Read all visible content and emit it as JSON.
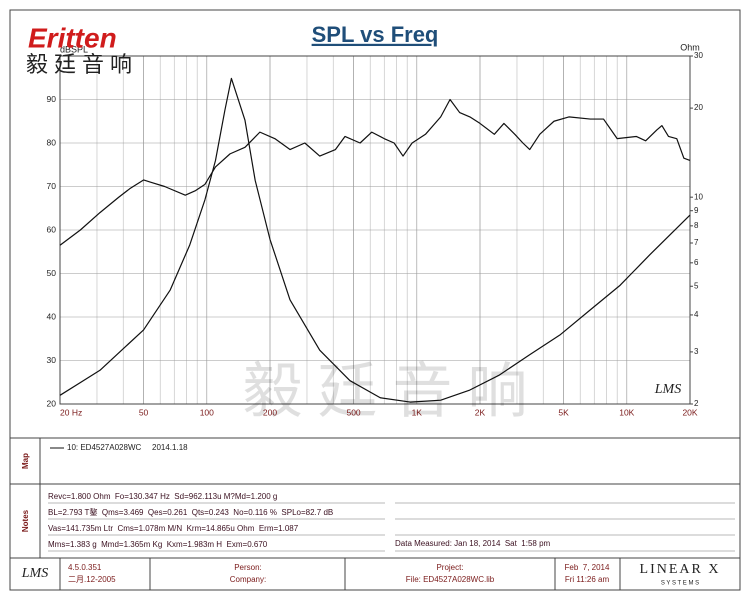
{
  "logo": {
    "brand": "Eritten",
    "chinese": "毅廷音响"
  },
  "watermark": "毅 廷 音 响",
  "corner_logo": "LMS",
  "chart_data": {
    "type": "line",
    "title": "SPL vs Freq",
    "y_label": "dBSPL",
    "y2_label": "Ohm",
    "xlog": true,
    "xlim": [
      20,
      20000
    ],
    "xticks": [
      {
        "value": 20,
        "label": "20 Hz"
      },
      50,
      100,
      200,
      500,
      {
        "value": 1000,
        "label": "1K"
      },
      {
        "value": 2000,
        "label": "2K"
      },
      {
        "value": 5000,
        "label": "5K"
      },
      {
        "value": 10000,
        "label": "10K"
      },
      {
        "value": 20000,
        "label": "20K"
      }
    ],
    "ylim": [
      20,
      100
    ],
    "yticks": [
      20,
      30,
      40,
      50,
      60,
      70,
      80,
      90
    ],
    "y2log": true,
    "y2lim": [
      2,
      30
    ],
    "y2ticks": [
      2,
      3,
      4,
      5,
      6,
      7,
      8,
      9,
      10,
      20,
      30
    ],
    "grid": true,
    "series": [
      {
        "color": "#111111",
        "x": [
          20,
          25,
          31,
          38,
          43,
          50,
          54,
          63,
          79,
          88,
          98,
          110,
          129,
          152,
          179,
          211,
          249,
          293,
          345,
          410,
          455,
          537,
          610,
          700,
          780,
          860,
          950,
          1100,
          1300,
          1440,
          1600,
          1790,
          2000,
          2340,
          2600,
          2930,
          3200,
          3450,
          3850,
          4500,
          5300,
          6700,
          7750,
          9000,
          11100,
          12300,
          13900,
          14700,
          15800,
          17300,
          18700,
          20000
        ],
        "values": [
          56.5,
          60,
          64,
          67.5,
          69.5,
          71.5,
          71,
          70,
          68,
          69,
          70.5,
          74.5,
          77.5,
          79,
          82.5,
          81,
          78.5,
          80,
          77,
          78.5,
          81.5,
          80,
          82.5,
          81,
          80,
          77,
          80,
          82,
          86,
          90,
          87,
          86,
          84.5,
          82,
          84.5,
          82,
          80,
          78.5,
          82,
          85,
          86,
          85.5,
          85.5,
          81,
          81.5,
          80.5,
          83,
          84,
          81.5,
          81,
          76.5,
          76
        ]
      },
      {
        "color": "#111111",
        "axis": "y2",
        "x": [
          20,
          31,
          50,
          67,
          83,
          98,
          110,
          122,
          131,
          152,
          170,
          200,
          249,
          345,
          480,
          670,
          930,
          1300,
          1790,
          2460,
          3440,
          4800,
          6700,
          9300,
          12900,
          20000
        ],
        "values": [
          2.14,
          2.6,
          3.56,
          4.86,
          6.9,
          9.8,
          13.3,
          19.7,
          25.2,
          18.2,
          11.4,
          7.2,
          4.5,
          3.04,
          2.4,
          2.1,
          2.03,
          2.06,
          2.23,
          2.5,
          2.93,
          3.42,
          4.16,
          5.04,
          6.4,
          8.7
        ]
      }
    ]
  },
  "map": {
    "label": "Map",
    "entry": "10: ED4527A028WC",
    "date": "2014.1.18"
  },
  "notes": {
    "label": "Notes",
    "lines": [
      "Revc=1.800 Ohm  Fo=130.347 Hz  Sd=962.113u M?Md=1.200 g",
      "BL=2.793 T鏊  Qms=3.469  Qes=0.261  Qts=0.243  No=0.116 %  SPLo=82.7 dB",
      "Vas=141.735m Ltr  Cms=1.078m M/N  Krm=14.865u Ohm  Erm=1.087",
      "Mms=1.383 g  Mmd=1.365m Kg  Kxm=1.983m H  Exm=0.670"
    ],
    "measured": "Data Measured: Jan 18, 2014  Sat  1:58 pm"
  },
  "footer": {
    "logo": "LMS",
    "version": "4.5.0.351",
    "build": "二月.12-2005",
    "person": "Person:",
    "company": "Company:",
    "project": "Project:",
    "file": "File: ED4527A028WC.lib",
    "date": "Feb  7, 2014",
    "time": "Fri 11:26 am",
    "brand": "LINEAR X",
    "brand_sub": "S Y S T E M S"
  }
}
